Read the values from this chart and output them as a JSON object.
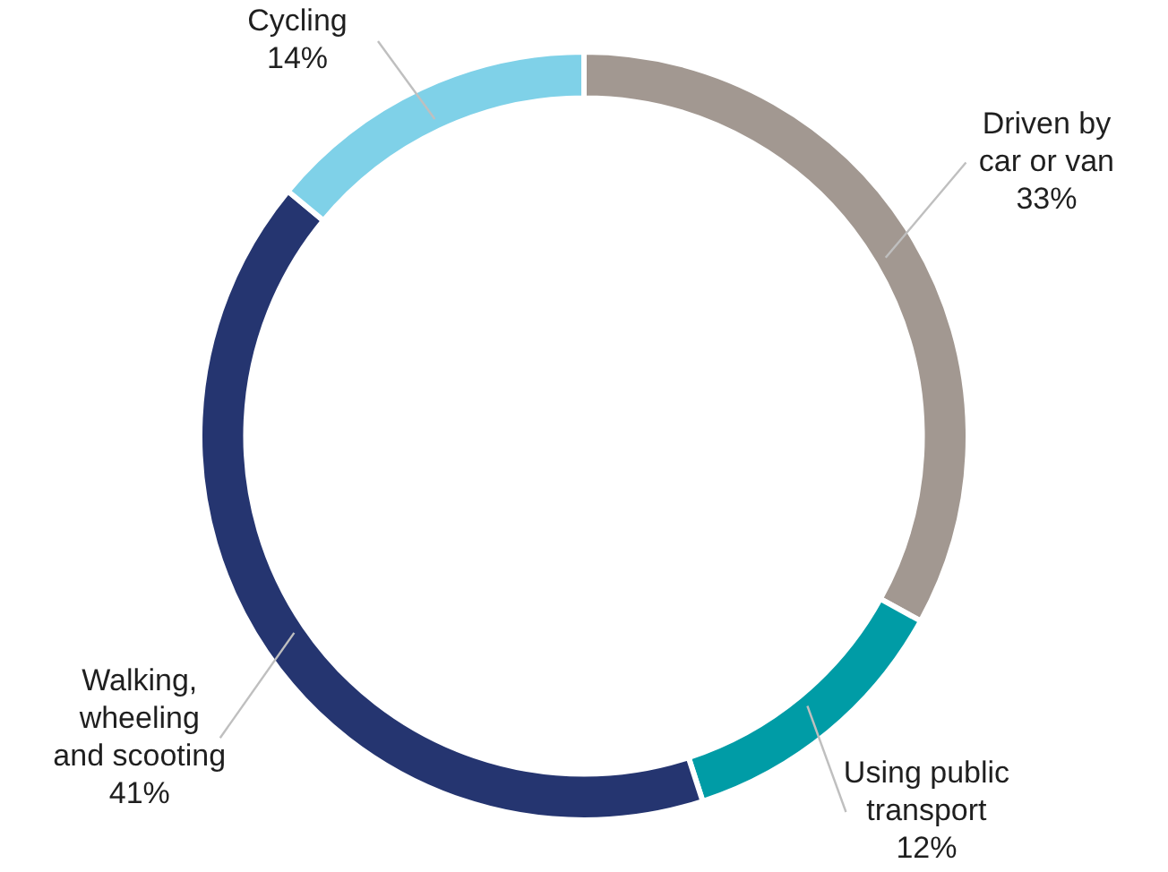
{
  "chart_data": {
    "type": "donut",
    "categories": [
      "Driven by car or van",
      "Using public transport",
      "Walking, wheeling and scooting",
      "Cycling"
    ],
    "values": [
      33,
      12,
      41,
      14
    ],
    "colors": [
      "#a29891",
      "#009ca6",
      "#253570",
      "#7fd1e8"
    ],
    "value_labels": [
      "33%",
      "12%",
      "41%",
      "14%"
    ],
    "legend": false
  }
}
